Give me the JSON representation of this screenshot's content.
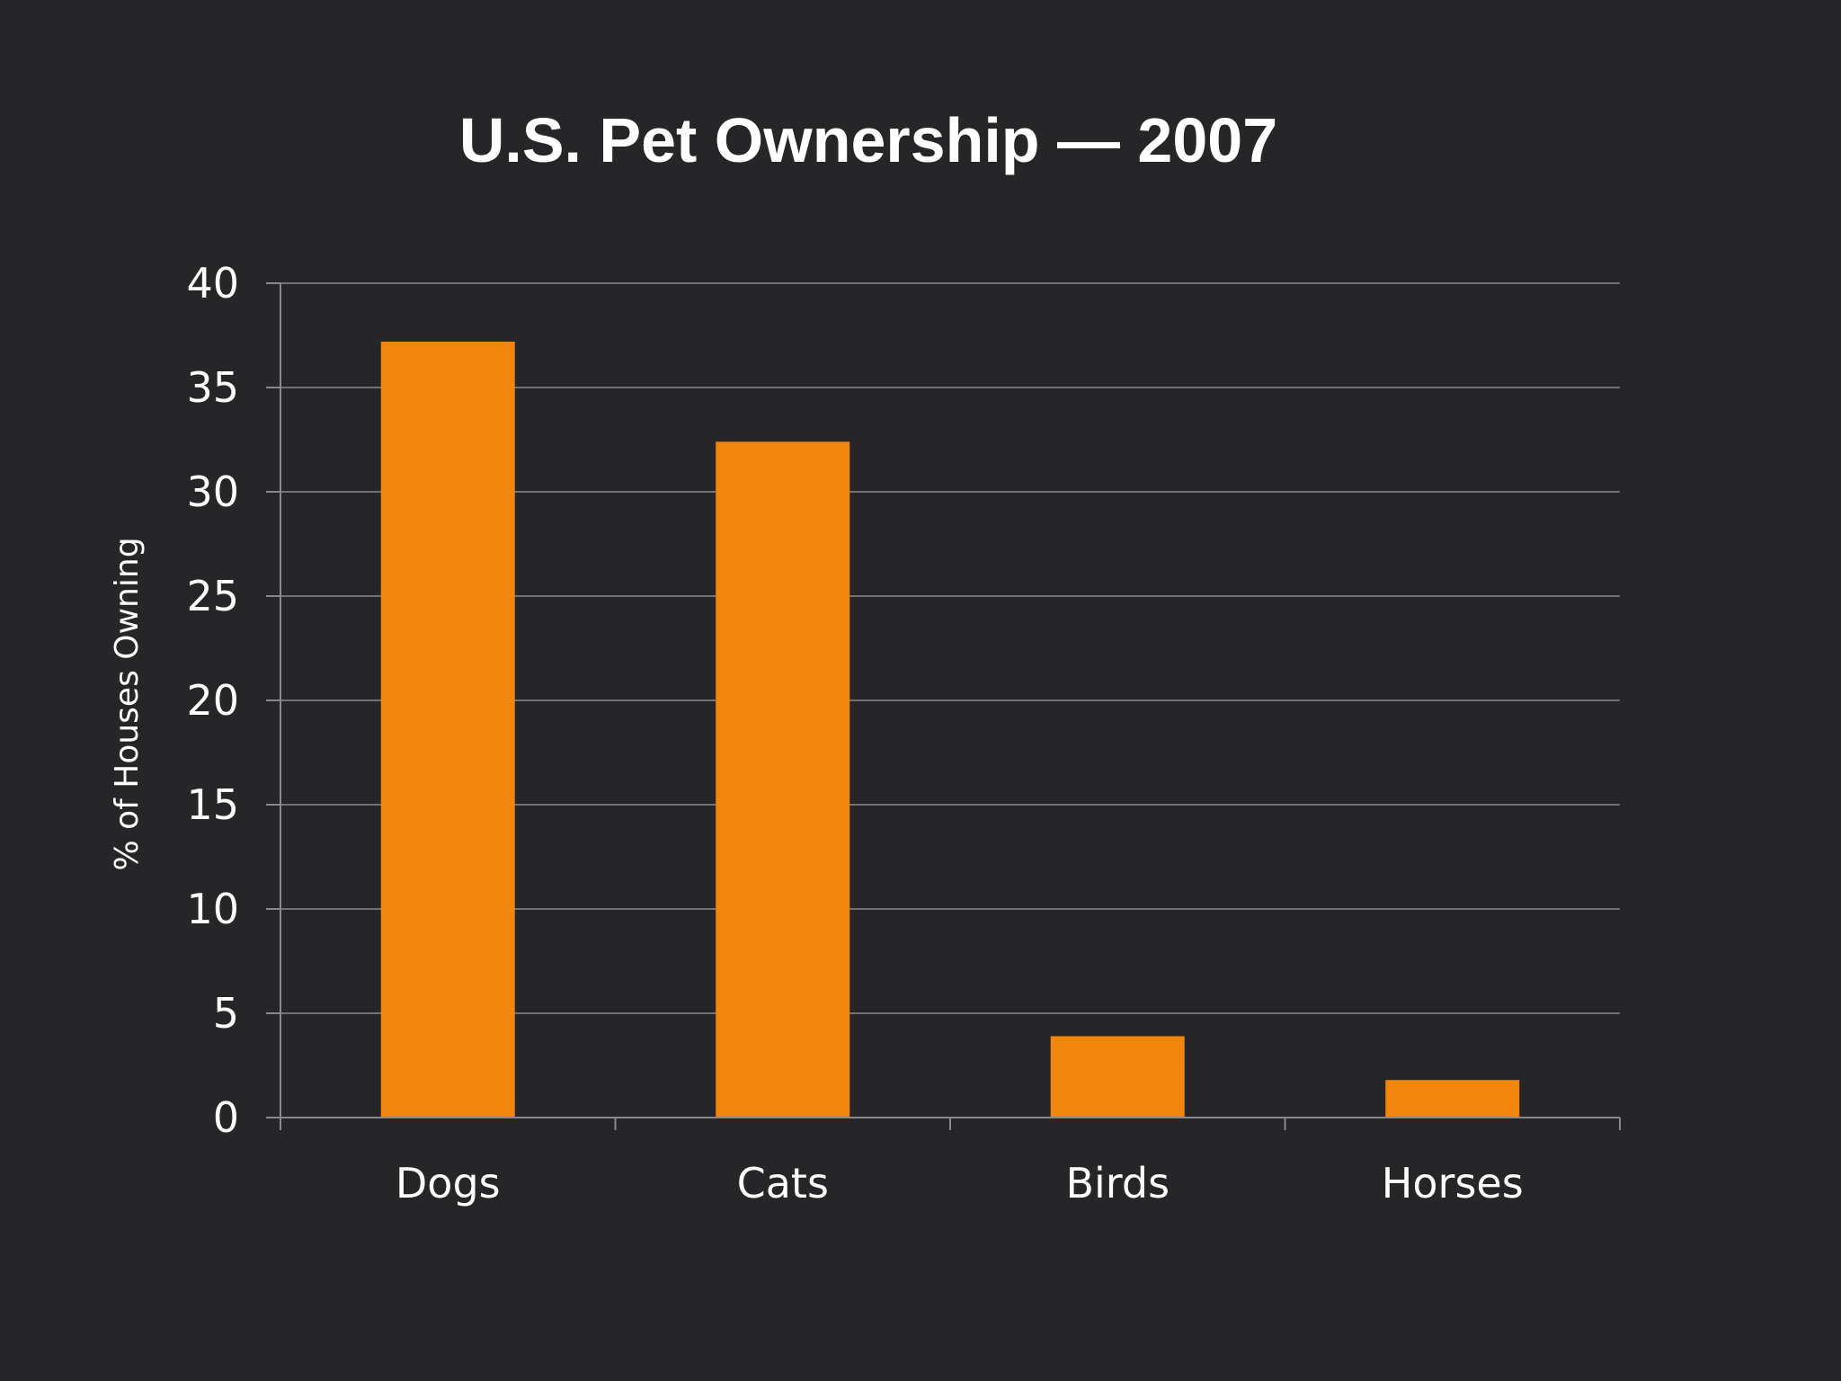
{
  "chart_data": {
    "type": "bar",
    "title": "U.S. Pet Ownership — 2007",
    "xlabel": "",
    "ylabel": "% of Houses Owning",
    "categories": [
      "Dogs",
      "Cats",
      "Birds",
      "Horses"
    ],
    "values": [
      37.2,
      32.4,
      3.9,
      1.8
    ],
    "ylim": [
      0,
      40
    ],
    "yticks": [
      0,
      5,
      10,
      15,
      20,
      25,
      30,
      35,
      40
    ],
    "grid": true,
    "legend": "none",
    "colors": {
      "background": "#262528",
      "bar": "#f0860b",
      "text": "#ffffff",
      "grid": "#8a898c"
    }
  }
}
